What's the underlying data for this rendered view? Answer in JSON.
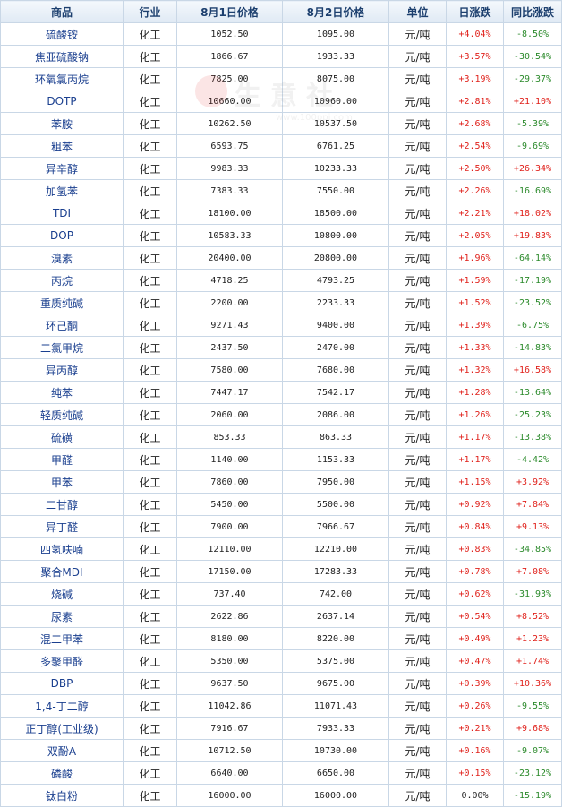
{
  "headers": [
    "商品",
    "行业",
    "8月1日价格",
    "8月2日价格",
    "单位",
    "日涨跌",
    "同比涨跌"
  ],
  "watermark": {
    "logo_text": "生意社",
    "url": "www.100ppi.com"
  },
  "rows": [
    {
      "name": "硫酸铵",
      "industry": "化工",
      "p1": "1052.50",
      "p2": "1095.00",
      "unit": "元/吨",
      "day": "+4.04%",
      "yoy": "-8.50%"
    },
    {
      "name": "焦亚硫酸钠",
      "industry": "化工",
      "p1": "1866.67",
      "p2": "1933.33",
      "unit": "元/吨",
      "day": "+3.57%",
      "yoy": "-30.54%"
    },
    {
      "name": "环氧氯丙烷",
      "industry": "化工",
      "p1": "7825.00",
      "p2": "8075.00",
      "unit": "元/吨",
      "day": "+3.19%",
      "yoy": "-29.37%"
    },
    {
      "name": "DOTP",
      "industry": "化工",
      "p1": "10660.00",
      "p2": "10960.00",
      "unit": "元/吨",
      "day": "+2.81%",
      "yoy": "+21.10%"
    },
    {
      "name": "苯胺",
      "industry": "化工",
      "p1": "10262.50",
      "p2": "10537.50",
      "unit": "元/吨",
      "day": "+2.68%",
      "yoy": "-5.39%"
    },
    {
      "name": "粗苯",
      "industry": "化工",
      "p1": "6593.75",
      "p2": "6761.25",
      "unit": "元/吨",
      "day": "+2.54%",
      "yoy": "-9.69%"
    },
    {
      "name": "异辛醇",
      "industry": "化工",
      "p1": "9983.33",
      "p2": "10233.33",
      "unit": "元/吨",
      "day": "+2.50%",
      "yoy": "+26.34%"
    },
    {
      "name": "加氢苯",
      "industry": "化工",
      "p1": "7383.33",
      "p2": "7550.00",
      "unit": "元/吨",
      "day": "+2.26%",
      "yoy": "-16.69%"
    },
    {
      "name": "TDI",
      "industry": "化工",
      "p1": "18100.00",
      "p2": "18500.00",
      "unit": "元/吨",
      "day": "+2.21%",
      "yoy": "+18.02%"
    },
    {
      "name": "DOP",
      "industry": "化工",
      "p1": "10583.33",
      "p2": "10800.00",
      "unit": "元/吨",
      "day": "+2.05%",
      "yoy": "+19.83%"
    },
    {
      "name": "溴素",
      "industry": "化工",
      "p1": "20400.00",
      "p2": "20800.00",
      "unit": "元/吨",
      "day": "+1.96%",
      "yoy": "-64.14%"
    },
    {
      "name": "丙烷",
      "industry": "化工",
      "p1": "4718.25",
      "p2": "4793.25",
      "unit": "元/吨",
      "day": "+1.59%",
      "yoy": "-17.19%"
    },
    {
      "name": "重质纯碱",
      "industry": "化工",
      "p1": "2200.00",
      "p2": "2233.33",
      "unit": "元/吨",
      "day": "+1.52%",
      "yoy": "-23.52%"
    },
    {
      "name": "环己酮",
      "industry": "化工",
      "p1": "9271.43",
      "p2": "9400.00",
      "unit": "元/吨",
      "day": "+1.39%",
      "yoy": "-6.75%"
    },
    {
      "name": "二氯甲烷",
      "industry": "化工",
      "p1": "2437.50",
      "p2": "2470.00",
      "unit": "元/吨",
      "day": "+1.33%",
      "yoy": "-14.83%"
    },
    {
      "name": "异丙醇",
      "industry": "化工",
      "p1": "7580.00",
      "p2": "7680.00",
      "unit": "元/吨",
      "day": "+1.32%",
      "yoy": "+16.58%"
    },
    {
      "name": "纯苯",
      "industry": "化工",
      "p1": "7447.17",
      "p2": "7542.17",
      "unit": "元/吨",
      "day": "+1.28%",
      "yoy": "-13.64%"
    },
    {
      "name": "轻质纯碱",
      "industry": "化工",
      "p1": "2060.00",
      "p2": "2086.00",
      "unit": "元/吨",
      "day": "+1.26%",
      "yoy": "-25.23%"
    },
    {
      "name": "硫磺",
      "industry": "化工",
      "p1": "853.33",
      "p2": "863.33",
      "unit": "元/吨",
      "day": "+1.17%",
      "yoy": "-13.38%"
    },
    {
      "name": "甲醛",
      "industry": "化工",
      "p1": "1140.00",
      "p2": "1153.33",
      "unit": "元/吨",
      "day": "+1.17%",
      "yoy": "-4.42%"
    },
    {
      "name": "甲苯",
      "industry": "化工",
      "p1": "7860.00",
      "p2": "7950.00",
      "unit": "元/吨",
      "day": "+1.15%",
      "yoy": "+3.92%"
    },
    {
      "name": "二甘醇",
      "industry": "化工",
      "p1": "5450.00",
      "p2": "5500.00",
      "unit": "元/吨",
      "day": "+0.92%",
      "yoy": "+7.84%"
    },
    {
      "name": "异丁醛",
      "industry": "化工",
      "p1": "7900.00",
      "p2": "7966.67",
      "unit": "元/吨",
      "day": "+0.84%",
      "yoy": "+9.13%"
    },
    {
      "name": "四氢呋喃",
      "industry": "化工",
      "p1": "12110.00",
      "p2": "12210.00",
      "unit": "元/吨",
      "day": "+0.83%",
      "yoy": "-34.85%"
    },
    {
      "name": "聚合MDI",
      "industry": "化工",
      "p1": "17150.00",
      "p2": "17283.33",
      "unit": "元/吨",
      "day": "+0.78%",
      "yoy": "+7.08%"
    },
    {
      "name": "烧碱",
      "industry": "化工",
      "p1": "737.40",
      "p2": "742.00",
      "unit": "元/吨",
      "day": "+0.62%",
      "yoy": "-31.93%"
    },
    {
      "name": "尿素",
      "industry": "化工",
      "p1": "2622.86",
      "p2": "2637.14",
      "unit": "元/吨",
      "day": "+0.54%",
      "yoy": "+8.52%"
    },
    {
      "name": "混二甲苯",
      "industry": "化工",
      "p1": "8180.00",
      "p2": "8220.00",
      "unit": "元/吨",
      "day": "+0.49%",
      "yoy": "+1.23%"
    },
    {
      "name": "多聚甲醛",
      "industry": "化工",
      "p1": "5350.00",
      "p2": "5375.00",
      "unit": "元/吨",
      "day": "+0.47%",
      "yoy": "+1.74%"
    },
    {
      "name": "DBP",
      "industry": "化工",
      "p1": "9637.50",
      "p2": "9675.00",
      "unit": "元/吨",
      "day": "+0.39%",
      "yoy": "+10.36%"
    },
    {
      "name": "1,4-丁二醇",
      "industry": "化工",
      "p1": "11042.86",
      "p2": "11071.43",
      "unit": "元/吨",
      "day": "+0.26%",
      "yoy": "-9.55%"
    },
    {
      "name": "正丁醇(工业级)",
      "industry": "化工",
      "p1": "7916.67",
      "p2": "7933.33",
      "unit": "元/吨",
      "day": "+0.21%",
      "yoy": "+9.68%"
    },
    {
      "name": "双酚A",
      "industry": "化工",
      "p1": "10712.50",
      "p2": "10730.00",
      "unit": "元/吨",
      "day": "+0.16%",
      "yoy": "-9.07%"
    },
    {
      "name": "磷酸",
      "industry": "化工",
      "p1": "6640.00",
      "p2": "6650.00",
      "unit": "元/吨",
      "day": "+0.15%",
      "yoy": "-23.12%"
    },
    {
      "name": "钛白粉",
      "industry": "化工",
      "p1": "16000.00",
      "p2": "16000.00",
      "unit": "元/吨",
      "day": "0.00%",
      "yoy": "-15.19%"
    }
  ],
  "colors": {
    "up": "#e0211b",
    "down": "#2b8a2b",
    "header_text": "#1c3f6e",
    "name_link": "#1a3f8f",
    "border": "#c9d7e6"
  }
}
